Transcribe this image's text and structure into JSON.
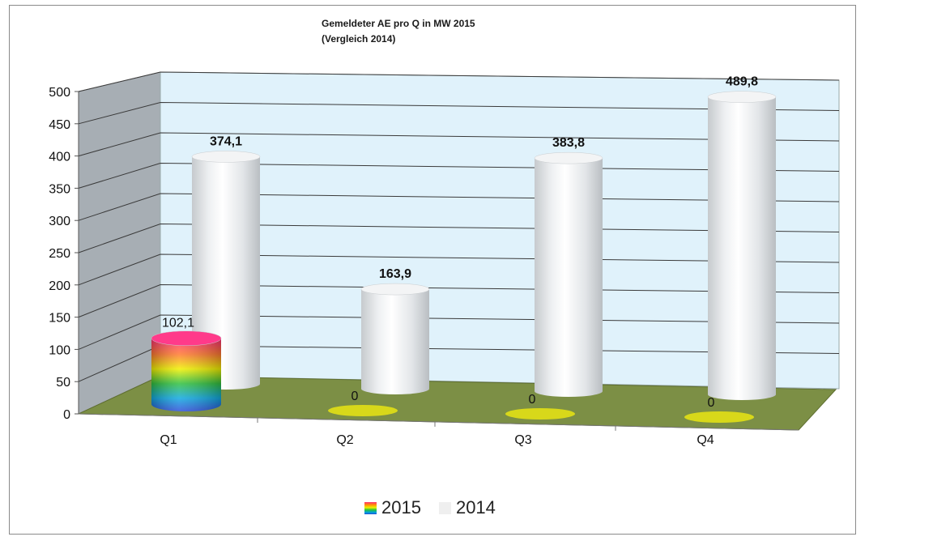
{
  "chart_data": {
    "type": "bar",
    "style": "3d-cylinder",
    "title": "Gemeldeter AE  pro Q in MW 2015",
    "subtitle": "(Vergleich 2014)",
    "categories": [
      "Q1",
      "Q2",
      "Q3",
      "Q4"
    ],
    "series": [
      {
        "name": "2015",
        "values": [
          102.1,
          0,
          0,
          0
        ],
        "labels": [
          "102,1",
          "0",
          "0",
          "0"
        ]
      },
      {
        "name": "2014",
        "values": [
          374.1,
          163.9,
          383.8,
          489.8
        ],
        "labels": [
          "374,1",
          "163,9",
          "383,8",
          "489,8"
        ]
      }
    ],
    "yticks": [
      "0",
      "50",
      "100",
      "150",
      "200",
      "250",
      "300",
      "350",
      "400",
      "450",
      "500"
    ],
    "ylim": [
      0,
      500
    ],
    "grid": true,
    "legend_position": "bottom",
    "colors": {
      "back_wall": "#e0f2fb",
      "side_wall": "#a7aeb4",
      "floor": "#7c8f45",
      "cylinder_2014": "#e9ecef",
      "ellipse_zero": "#d8d81a"
    }
  }
}
